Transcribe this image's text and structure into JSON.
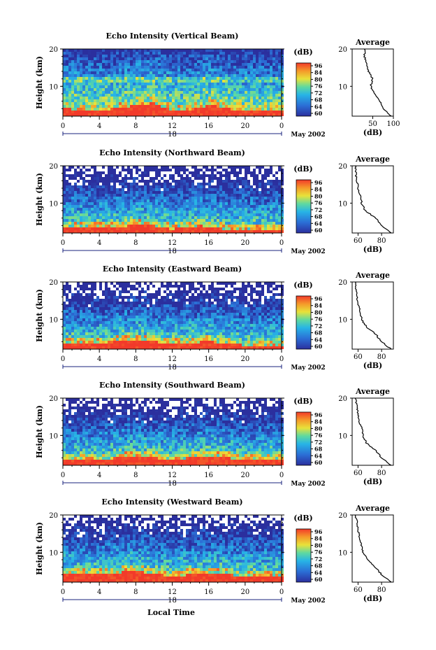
{
  "figure": {
    "xlabel": "Local Time",
    "ylabel": "Height (km)",
    "date_label": "May 2002",
    "x_ticks": [
      "0",
      "4",
      "8",
      "12",
      "16",
      "20",
      "0"
    ],
    "y_ticks": [
      "20",
      "10"
    ],
    "colorbar_unit": "(dB)",
    "colorbar_ticks": [
      "96",
      "84",
      "80",
      "76",
      "72",
      "68",
      "64",
      "60"
    ],
    "colors": {
      "low": "#2b2f9e",
      "mid": "#27b4e6",
      "high": "#f23a2a"
    },
    "panels": [
      {
        "title": "Echo Intensity (Vertical Beam)",
        "day": "18",
        "avg_title": "Average",
        "avg_xlabel": "(dB)",
        "avg_xticks": [
          "50",
          "100"
        ]
      },
      {
        "title": "Echo Intensity (Northward Beam)",
        "day": "18",
        "avg_title": "Average",
        "avg_xlabel": "(dB)",
        "avg_xticks": [
          "60",
          "80"
        ]
      },
      {
        "title": "Echo Intensity (Eastward Beam)",
        "day": "18",
        "avg_title": "Average",
        "avg_xlabel": "(dB)",
        "avg_xticks": [
          "60",
          "80"
        ]
      },
      {
        "title": "Echo Intensity (Southward Beam)",
        "day": "18",
        "avg_title": "Average",
        "avg_xlabel": "(dB)",
        "avg_xticks": [
          "60",
          "80"
        ]
      },
      {
        "title": "Echo Intensity (Westward Beam)",
        "day": "18",
        "avg_title": "Average",
        "avg_xlabel": "(dB)",
        "avg_xticks": [
          "60",
          "80"
        ]
      }
    ]
  },
  "chart_data": [
    {
      "type": "heatmap",
      "title": "Echo Intensity (Vertical Beam)",
      "xlabel": "",
      "ylabel": "Height (km)",
      "x_range_hours": [
        0,
        24
      ],
      "y_range_km": [
        2,
        20
      ],
      "z_range_db": [
        60,
        96
      ],
      "surface_layer_top_km": [
        [
          0,
          5
        ],
        [
          4,
          4.5
        ],
        [
          6,
          5
        ],
        [
          8,
          6
        ],
        [
          10,
          6.5
        ],
        [
          12,
          4.5
        ],
        [
          14,
          4.5
        ],
        [
          16,
          6
        ],
        [
          18,
          5
        ],
        [
          20,
          4.5
        ],
        [
          24,
          4.5
        ]
      ],
      "profile": {
        "title": "Average",
        "xlabel": "(dB)",
        "xlim": [
          0,
          100
        ],
        "height_km": [
          2,
          4,
          6,
          8,
          10,
          12,
          14,
          16,
          18,
          20
        ],
        "db": [
          95,
          75,
          68,
          55,
          45,
          50,
          40,
          35,
          30,
          30
        ]
      }
    },
    {
      "type": "heatmap",
      "title": "Echo Intensity (Northward Beam)",
      "xlabel": "",
      "ylabel": "Height (km)",
      "x_range_hours": [
        0,
        24
      ],
      "y_range_km": [
        2,
        20
      ],
      "z_range_db": [
        60,
        96
      ],
      "surface_layer_top_km": [
        [
          0,
          4.5
        ],
        [
          4,
          4.5
        ],
        [
          8,
          5
        ],
        [
          10,
          5
        ],
        [
          12,
          4
        ],
        [
          15,
          5
        ],
        [
          18,
          4
        ],
        [
          24,
          4
        ]
      ],
      "profile": {
        "title": "Average",
        "xlabel": "(dB)",
        "xlim": [
          55,
          90
        ],
        "height_km": [
          2,
          4,
          6,
          8,
          10,
          12,
          14,
          16,
          18,
          20
        ],
        "db": [
          88,
          80,
          75,
          66,
          63,
          62,
          60,
          59,
          58,
          58
        ]
      }
    },
    {
      "type": "heatmap",
      "title": "Echo Intensity (Eastward Beam)",
      "xlabel": "",
      "ylabel": "Height (km)",
      "x_range_hours": [
        0,
        24
      ],
      "y_range_km": [
        2,
        20
      ],
      "z_range_db": [
        60,
        96
      ],
      "surface_layer_top_km": [
        [
          0,
          4.5
        ],
        [
          4,
          4.5
        ],
        [
          8,
          5.5
        ],
        [
          10,
          5
        ],
        [
          12,
          4.5
        ],
        [
          16,
          5
        ],
        [
          20,
          4
        ],
        [
          24,
          4
        ]
      ],
      "profile": {
        "title": "Average",
        "xlabel": "(dB)",
        "xlim": [
          55,
          90
        ],
        "height_km": [
          2,
          4,
          6,
          8,
          10,
          12,
          14,
          16,
          18,
          20
        ],
        "db": [
          88,
          80,
          75,
          67,
          63,
          62,
          60,
          59,
          58,
          58
        ]
      }
    },
    {
      "type": "heatmap",
      "title": "Echo Intensity (Southward Beam)",
      "xlabel": "",
      "ylabel": "Height (km)",
      "x_range_hours": [
        0,
        24
      ],
      "y_range_km": [
        2,
        20
      ],
      "z_range_db": [
        60,
        96
      ],
      "surface_layer_top_km": [
        [
          0,
          4.5
        ],
        [
          4,
          4.5
        ],
        [
          8,
          5.5
        ],
        [
          12,
          4.5
        ],
        [
          16,
          5.5
        ],
        [
          20,
          4.5
        ],
        [
          24,
          4.5
        ]
      ],
      "profile": {
        "title": "Average",
        "xlabel": "(dB)",
        "xlim": [
          55,
          90
        ],
        "height_km": [
          2,
          4,
          6,
          8,
          10,
          12,
          14,
          16,
          18,
          20
        ],
        "db": [
          88,
          80,
          75,
          67,
          64,
          63,
          61,
          60,
          59,
          58
        ]
      }
    },
    {
      "type": "heatmap",
      "title": "Echo Intensity (Westward Beam)",
      "xlabel": "Local Time",
      "ylabel": "Height (km)",
      "x_range_hours": [
        0,
        24
      ],
      "y_range_km": [
        2,
        20
      ],
      "z_range_db": [
        60,
        96
      ],
      "surface_layer_top_km": [
        [
          0,
          5
        ],
        [
          4,
          5
        ],
        [
          8,
          6
        ],
        [
          12,
          4.5
        ],
        [
          16,
          5.5
        ],
        [
          20,
          4.5
        ],
        [
          24,
          4.5
        ]
      ],
      "profile": {
        "title": "Average",
        "xlabel": "(dB)",
        "xlim": [
          55,
          90
        ],
        "height_km": [
          2,
          4,
          6,
          8,
          10,
          12,
          14,
          16,
          18,
          20
        ],
        "db": [
          88,
          80,
          75,
          68,
          64,
          63,
          61,
          60,
          59,
          58
        ]
      }
    }
  ]
}
